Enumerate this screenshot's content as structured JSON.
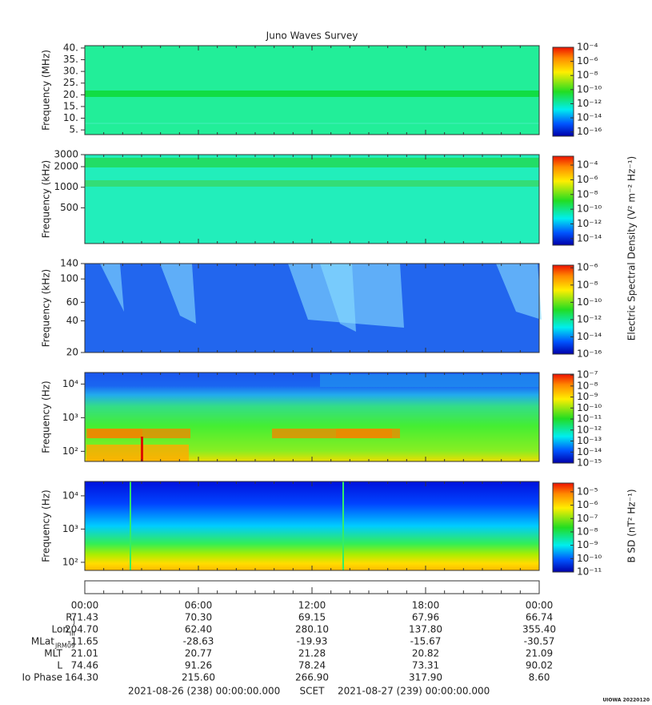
{
  "title": "Juno Waves Survey",
  "chart_data": [
    {
      "type": "spectrogram",
      "ylabel": "Frequency (MHz)",
      "ylog": false,
      "ylim": [
        3,
        41
      ],
      "yticks": [
        {
          "value": 5,
          "label": "5."
        },
        {
          "value": 10,
          "label": "10."
        },
        {
          "value": 15,
          "label": "15."
        },
        {
          "value": 20,
          "label": "20."
        },
        {
          "value": 25,
          "label": "25."
        },
        {
          "value": 30,
          "label": "30."
        },
        {
          "value": 35,
          "label": "35."
        },
        {
          "value": 40,
          "label": "40."
        }
      ],
      "clim": [
        2.5e-17,
        0.0001
      ],
      "cticks": [
        {
          "value": 0.0001,
          "label": "10⁻⁴"
        },
        {
          "value": 1e-06,
          "label": "10⁻⁶"
        },
        {
          "value": 1e-08,
          "label": "10⁻⁸"
        },
        {
          "value": 1e-10,
          "label": "10⁻¹⁰"
        },
        {
          "value": 1e-12,
          "label": "10⁻¹²"
        },
        {
          "value": 1e-14,
          "label": "10⁻¹⁴"
        },
        {
          "value": 1e-16,
          "label": "10⁻¹⁶"
        }
      ]
    },
    {
      "type": "spectrogram",
      "ylabel": "Frequency (kHz)",
      "ylog": true,
      "ylim": [
        150,
        3000
      ],
      "yticks": [
        500,
        1000,
        2000,
        3000
      ],
      "clim": [
        1.3e-15,
        0.0016
      ],
      "cticks": [
        {
          "value": 0.0001,
          "label": "10⁻⁴"
        },
        {
          "value": 1e-06,
          "label": "10⁻⁶"
        },
        {
          "value": 1e-08,
          "label": "10⁻⁸"
        },
        {
          "value": 1e-10,
          "label": "10⁻¹⁰"
        },
        {
          "value": 1e-12,
          "label": "10⁻¹²"
        },
        {
          "value": 1e-14,
          "label": "10⁻¹⁴"
        }
      ]
    },
    {
      "type": "spectrogram",
      "ylabel": "Frequency (kHz)",
      "ylog": true,
      "ylim": [
        20,
        140
      ],
      "yticks": [
        20,
        40,
        60,
        100,
        140
      ],
      "clim": [
        1e-16,
        2e-06
      ],
      "cticks": [
        {
          "value": 1e-06,
          "label": "10⁻⁶"
        },
        {
          "value": 1e-08,
          "label": "10⁻⁸"
        },
        {
          "value": 1e-10,
          "label": "10⁻¹⁰"
        },
        {
          "value": 1e-12,
          "label": "10⁻¹²"
        },
        {
          "value": 1e-14,
          "label": "10⁻¹⁴"
        },
        {
          "value": 1e-16,
          "label": "10⁻¹⁶"
        }
      ]
    },
    {
      "type": "spectrogram",
      "ylabel": "Frequency (Hz)",
      "ylog": true,
      "ylim": [
        50,
        22000
      ],
      "yticks": [
        {
          "value": 100,
          "label": "10²"
        },
        {
          "value": 1000,
          "label": "10³"
        },
        {
          "value": 10000,
          "label": "10⁴"
        }
      ],
      "clim": [
        1e-15,
        1.2e-07
      ],
      "cticks": [
        {
          "value": 1e-07,
          "label": "10⁻⁷"
        },
        {
          "value": 1e-08,
          "label": "10⁻⁸"
        },
        {
          "value": 1e-09,
          "label": "10⁻⁹"
        },
        {
          "value": 1e-10,
          "label": "10⁻¹⁰"
        },
        {
          "value": 1e-11,
          "label": "10⁻¹¹"
        },
        {
          "value": 1e-12,
          "label": "10⁻¹²"
        },
        {
          "value": 1e-13,
          "label": "10⁻¹³"
        },
        {
          "value": 1e-14,
          "label": "10⁻¹⁴"
        },
        {
          "value": 1e-15,
          "label": "10⁻¹⁵"
        }
      ]
    },
    {
      "type": "spectrogram",
      "ylabel": "Frequency (Hz)",
      "ylog": true,
      "ylim": [
        57,
        27000
      ],
      "yticks": [
        {
          "value": 100,
          "label": "10²"
        },
        {
          "value": 1000,
          "label": "10³"
        },
        {
          "value": 10000,
          "label": "10⁴"
        }
      ],
      "clim": [
        1e-11,
        4.5e-05
      ],
      "zlabel": "B SD (nT² Hz⁻¹)",
      "cticks": [
        {
          "value": 1e-05,
          "label": "10⁻⁵"
        },
        {
          "value": 1e-06,
          "label": "10⁻⁶"
        },
        {
          "value": 1e-07,
          "label": "10⁻⁷"
        },
        {
          "value": 1e-08,
          "label": "10⁻⁸"
        },
        {
          "value": 1e-09,
          "label": "10⁻⁹"
        },
        {
          "value": 1e-10,
          "label": "10⁻¹⁰"
        },
        {
          "value": 1e-11,
          "label": "10⁻¹¹"
        }
      ]
    }
  ],
  "e_colorbar_label": "Electric Spectral Density (V² m⁻² Hz⁻¹)",
  "time_axis": {
    "xlim": [
      0,
      24
    ],
    "xticks": [
      {
        "value": 0,
        "label": "00:00"
      },
      {
        "value": 6,
        "label": "06:00"
      },
      {
        "value": 12,
        "label": "12:00"
      },
      {
        "value": 18,
        "label": "18:00"
      },
      {
        "value": 24,
        "label": "00:00"
      }
    ],
    "minor_xticks": [
      1,
      2,
      3,
      4,
      5,
      7,
      8,
      9,
      10,
      11,
      13,
      14,
      15,
      16,
      17,
      19,
      20,
      21,
      22,
      23
    ]
  },
  "ephemeris": [
    {
      "name": "R",
      "sub": "J",
      "values": [
        "71.43",
        "70.30",
        "69.15",
        "67.96",
        "66.74"
      ]
    },
    {
      "name": "Lon",
      "sub": "III",
      "values": [
        "204.70",
        "62.40",
        "280.10",
        "137.80",
        "355.40"
      ]
    },
    {
      "name": "MLat",
      "sub": "JRM09",
      "values": [
        "-11.65",
        "-28.63",
        "-19.93",
        "-15.67",
        "-30.57"
      ]
    },
    {
      "name": "MLT",
      "values": [
        "21.01",
        "20.77",
        "21.28",
        "20.82",
        "21.09"
      ]
    },
    {
      "name": "L",
      "values": [
        "74.46",
        "91.26",
        "78.24",
        "73.31",
        "90.02"
      ]
    },
    {
      "name": "Io Phase",
      "values": [
        "164.30",
        "215.60",
        "266.90",
        "317.90",
        "8.60"
      ]
    }
  ],
  "footer": {
    "start": "2021-08-26 (238) 00:00:00.000",
    "scet": "SCET",
    "end": "2021-08-27 (239) 00:00:00.000",
    "stamp": "UIOWA 20220120"
  }
}
